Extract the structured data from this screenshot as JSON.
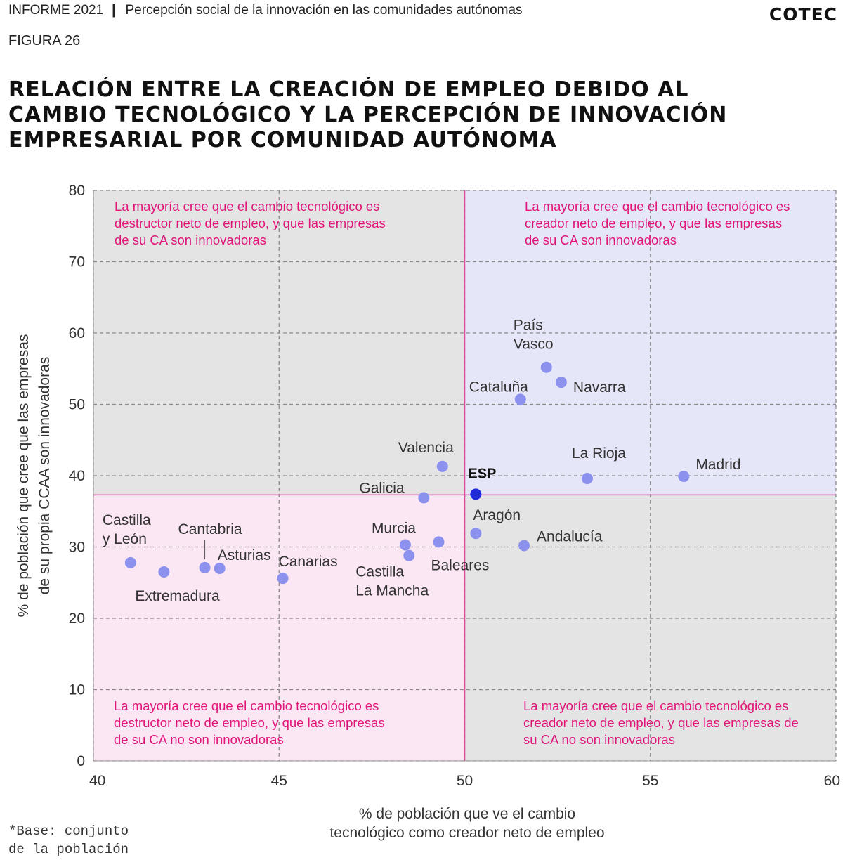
{
  "header": {
    "report": "INFORME 2021",
    "section": "Percepción social de la innovación en las comunidades autónomas",
    "logo": "COTEC"
  },
  "figure_label": "FIGURA 26",
  "title_lines": [
    "RELACIÓN ENTRE LA CREACIÓN DE EMPLEO DEBIDO AL",
    "CAMBIO TECNOLÓGICO Y LA PERCEPCIÓN DE INNOVACIÓN",
    "EMPRESARIAL POR COMUNIDAD AUTÓNOMA"
  ],
  "footnote_lines": [
    "*Base: conjunto",
    "de la población"
  ],
  "colors": {
    "grey_quadrant": "#e4e4e4",
    "blue_quadrant": "#e6e6f9",
    "pink_quadrant": "#fbe6f3",
    "point": "#8c91ee",
    "highlight_point": "#1f2bd9",
    "quadrant_text": "#e0157a",
    "reference_line": "#e04ba0"
  },
  "chart_data": {
    "type": "scatter",
    "xlabel_lines": [
      "% de población que ve el cambio",
      "tecnológico como creador neto de empleo"
    ],
    "ylabel_lines": [
      "% de población que cree que las empresas",
      "de su propia CCAA son innovadoras"
    ],
    "xlim": [
      40,
      60
    ],
    "ylim": [
      0,
      80
    ],
    "x_ticks": [
      40,
      45,
      50,
      55,
      60
    ],
    "y_ticks": [
      0,
      10,
      20,
      30,
      40,
      50,
      60,
      70,
      80
    ],
    "grid": true,
    "reference_x": 50,
    "reference_y": 37.3,
    "quadrant_notes": {
      "top_left": [
        "La mayoría cree que el cambio tecnológico es",
        "destructor neto de empleo, y que las empresas",
        "de su CA son innovadoras"
      ],
      "top_right": [
        "La mayoría cree que el cambio tecnológico es",
        "creador neto de empleo, y que las empresas",
        "de su CA son innovadoras"
      ],
      "bottom_left": [
        "La mayoría cree que el cambio tecnológico es",
        "destructor neto de empleo, y que las empresas",
        "de su CA no son innovadoras"
      ],
      "bottom_right": [
        "La mayoría cree que el cambio tecnológico es",
        "creador neto de empleo, y que las empresas de",
        "su CA no son innovadoras"
      ]
    },
    "points": [
      {
        "name": "Castilla y León",
        "label_lines": [
          "Castilla",
          "y León"
        ],
        "x": 41.0,
        "y": 27.8
      },
      {
        "name": "Extremadura",
        "label_lines": [
          "Extremadura"
        ],
        "x": 41.9,
        "y": 26.5
      },
      {
        "name": "Cantabria",
        "label_lines": [
          "Cantabria"
        ],
        "x": 43.0,
        "y": 27.1
      },
      {
        "name": "Asturias",
        "label_lines": [
          "Asturias"
        ],
        "x": 43.4,
        "y": 27.0
      },
      {
        "name": "Canarias",
        "label_lines": [
          "Canarias"
        ],
        "x": 45.1,
        "y": 25.6
      },
      {
        "name": "Murcia",
        "label_lines": [
          "Murcia"
        ],
        "x": 48.4,
        "y": 30.3
      },
      {
        "name": "Castilla La Mancha",
        "label_lines": [
          "Castilla",
          "La Mancha"
        ],
        "x": 48.5,
        "y": 28.8
      },
      {
        "name": "Baleares",
        "label_lines": [
          "Baleares"
        ],
        "x": 49.3,
        "y": 30.7
      },
      {
        "name": "Galicia",
        "label_lines": [
          "Galicia"
        ],
        "x": 48.9,
        "y": 36.9
      },
      {
        "name": "Valencia",
        "label_lines": [
          "Valencia"
        ],
        "x": 49.4,
        "y": 41.3
      },
      {
        "name": "ESP",
        "label_lines": [
          "ESP"
        ],
        "x": 50.3,
        "y": 37.4,
        "highlight": true
      },
      {
        "name": "Aragón",
        "label_lines": [
          "Aragón"
        ],
        "x": 50.3,
        "y": 31.9
      },
      {
        "name": "Andalucía",
        "label_lines": [
          "Andalucía"
        ],
        "x": 51.6,
        "y": 30.2
      },
      {
        "name": "Cataluña",
        "label_lines": [
          "Cataluña"
        ],
        "x": 51.5,
        "y": 50.7
      },
      {
        "name": "País Vasco",
        "label_lines": [
          "País",
          "Vasco"
        ],
        "x": 52.2,
        "y": 55.2
      },
      {
        "name": "Navarra",
        "label_lines": [
          "Navarra"
        ],
        "x": 52.6,
        "y": 53.1
      },
      {
        "name": "La Rioja",
        "label_lines": [
          "La Rioja"
        ],
        "x": 53.3,
        "y": 39.6
      },
      {
        "name": "Madrid",
        "label_lines": [
          "Madrid"
        ],
        "x": 55.9,
        "y": 39.9
      }
    ]
  }
}
